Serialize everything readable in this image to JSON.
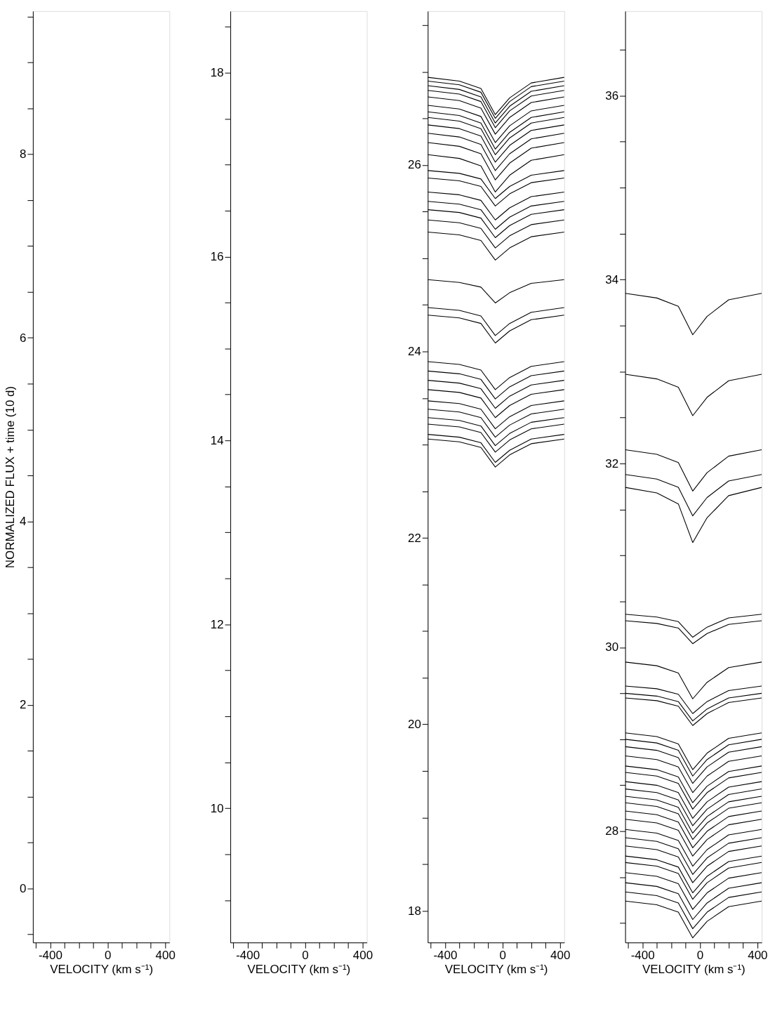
{
  "chart_data": [
    {
      "type": "line",
      "xlabel": "VELOCITY (km s⁻¹)",
      "ylabel": "NORMALIZED FLUX + time (10 d)",
      "xlim": [
        -520,
        430
      ],
      "ylim": [
        -0.59,
        9.56
      ],
      "xticks": [
        {
          "value": -500,
          "label": null
        },
        -400,
        {
          "value": -300,
          "label": null
        },
        {
          "value": -200,
          "label": null
        },
        {
          "value": -100,
          "label": null
        },
        0,
        {
          "value": 100,
          "label": null
        },
        {
          "value": 200,
          "label": null
        },
        {
          "value": 300,
          "label": null
        },
        400
      ],
      "yticks": [
        {
          "value": -0.5,
          "label": null
        },
        0,
        {
          "value": 0.5,
          "label": null
        },
        {
          "value": 1,
          "label": null
        },
        {
          "value": 1.5,
          "label": null
        },
        2,
        {
          "value": 2.5,
          "label": null
        },
        {
          "value": 3,
          "label": null
        },
        {
          "value": 3.5,
          "label": null
        },
        4,
        {
          "value": 4.5,
          "label": null
        },
        {
          "value": 5,
          "label": null
        },
        {
          "value": 5.5,
          "label": null
        },
        6,
        {
          "value": 6.5,
          "label": null
        },
        {
          "value": 7,
          "label": null
        },
        {
          "value": 7.5,
          "label": null
        },
        8,
        {
          "value": 8.5,
          "label": null
        },
        {
          "value": 9,
          "label": null
        },
        {
          "value": 9.5,
          "label": null
        }
      ]
    },
    {
      "type": "line",
      "xlabel": "VELOCITY (km s⁻¹)",
      "xlim": [
        -520,
        430
      ],
      "ylim": [
        8.54,
        18.67
      ],
      "xticks": [
        {
          "value": -500,
          "label": null
        },
        -400,
        {
          "value": -300,
          "label": null
        },
        {
          "value": -200,
          "label": null
        },
        {
          "value": -100,
          "label": null
        },
        0,
        {
          "value": 100,
          "label": null
        },
        {
          "value": 200,
          "label": null
        },
        {
          "value": 300,
          "label": null
        },
        400
      ],
      "yticks": [
        {
          "value": 9,
          "label": null
        },
        {
          "value": 9.5,
          "label": null
        },
        10,
        {
          "value": 10.5,
          "label": null
        },
        {
          "value": 11,
          "label": null
        },
        {
          "value": 11.5,
          "label": null
        },
        12,
        {
          "value": 12.5,
          "label": null
        },
        {
          "value": 13,
          "label": null
        },
        {
          "value": 13.5,
          "label": null
        },
        14,
        {
          "value": 14.5,
          "label": null
        },
        {
          "value": 15,
          "label": null
        },
        {
          "value": 15.5,
          "label": null
        },
        16,
        {
          "value": 16.5,
          "label": null
        },
        {
          "value": 17,
          "label": null
        },
        {
          "value": 17.5,
          "label": null
        },
        18,
        {
          "value": 18.5,
          "label": null
        }
      ]
    },
    {
      "type": "line",
      "xlabel": "VELOCITY (km s⁻¹)",
      "xlim": [
        -520,
        430
      ],
      "ylim": [
        17.66,
        27.65
      ],
      "xticks": [
        {
          "value": -500,
          "label": null
        },
        -400,
        {
          "value": -300,
          "label": null
        },
        {
          "value": -200,
          "label": null
        },
        {
          "value": -100,
          "label": null
        },
        0,
        {
          "value": 100,
          "label": null
        },
        {
          "value": 200,
          "label": null
        },
        {
          "value": 300,
          "label": null
        },
        400
      ],
      "yticks": [
        18,
        {
          "value": 18.5,
          "label": null
        },
        {
          "value": 19,
          "label": null
        },
        {
          "value": 19.5,
          "label": null
        },
        20,
        {
          "value": 20.5,
          "label": null
        },
        {
          "value": 21,
          "label": null
        },
        {
          "value": 21.5,
          "label": null
        },
        22,
        {
          "value": 22.5,
          "label": null
        },
        {
          "value": 23,
          "label": null
        },
        {
          "value": 23.5,
          "label": null
        },
        24,
        {
          "value": 24.5,
          "label": null
        },
        {
          "value": 25,
          "label": null
        },
        {
          "value": 25.5,
          "label": null
        },
        26,
        {
          "value": 26.5,
          "label": null
        },
        {
          "value": 27,
          "label": null
        },
        {
          "value": 27.5,
          "label": null
        }
      ],
      "x": [
        -520,
        -300,
        -150,
        -50,
        50,
        200,
        430
      ],
      "series": [
        {
          "color": "#000000",
          "values": [
            26.94,
            26.9,
            26.82,
            26.54,
            26.72,
            26.88,
            26.94
          ]
        },
        {
          "color": "#000000",
          "values": [
            26.9,
            26.86,
            26.78,
            26.5,
            26.68,
            26.84,
            26.9
          ]
        },
        {
          "color": "#000000",
          "values": [
            26.85,
            26.81,
            26.73,
            26.45,
            26.63,
            26.79,
            26.85
          ]
        },
        {
          "color": "#000000",
          "values": [
            26.8,
            26.76,
            26.68,
            26.4,
            26.58,
            26.74,
            26.8
          ]
        },
        {
          "color": "#000000",
          "values": [
            26.73,
            26.69,
            26.61,
            26.33,
            26.51,
            26.67,
            26.73
          ]
        },
        {
          "color": "#000000",
          "values": [
            26.64,
            26.6,
            26.52,
            26.24,
            26.42,
            26.58,
            26.64
          ]
        },
        {
          "color": "#000000",
          "values": [
            26.57,
            26.53,
            26.45,
            26.17,
            26.35,
            26.51,
            26.57
          ]
        },
        {
          "color": "#000000",
          "values": [
            26.51,
            26.47,
            26.39,
            26.11,
            26.29,
            26.45,
            26.51
          ]
        },
        {
          "color": "#000000",
          "values": [
            26.43,
            26.39,
            26.31,
            26.03,
            26.21,
            26.37,
            26.43
          ]
        },
        {
          "color": "#000000",
          "values": [
            26.34,
            26.3,
            26.22,
            25.94,
            26.12,
            26.28,
            26.34
          ]
        },
        {
          "color": "#000000",
          "values": [
            26.24,
            26.2,
            26.12,
            25.84,
            26.02,
            26.18,
            26.24
          ]
        },
        {
          "color": "#000000",
          "values": [
            26.11,
            26.07,
            25.99,
            25.71,
            25.89,
            26.05,
            26.11
          ]
        },
        {
          "color": "#000000",
          "values": [
            25.94,
            25.91,
            25.85,
            25.64,
            25.77,
            25.89,
            25.94
          ]
        },
        {
          "color": "#000000",
          "values": [
            25.86,
            25.83,
            25.77,
            25.56,
            25.69,
            25.81,
            25.86
          ]
        },
        {
          "color": "#000000",
          "values": [
            25.71,
            25.68,
            25.62,
            25.41,
            25.54,
            25.66,
            25.71
          ]
        },
        {
          "color": "#000000",
          "values": [
            25.61,
            25.58,
            25.52,
            25.31,
            25.44,
            25.56,
            25.61
          ]
        },
        {
          "color": "#000000",
          "values": [
            25.52,
            25.49,
            25.43,
            25.22,
            25.35,
            25.47,
            25.52
          ]
        },
        {
          "color": "#000000",
          "values": [
            25.41,
            25.38,
            25.32,
            25.11,
            25.24,
            25.36,
            25.41
          ]
        },
        {
          "color": "#000000",
          "values": [
            25.28,
            25.25,
            25.19,
            24.98,
            25.11,
            25.23,
            25.28
          ]
        },
        {
          "color": "#000000",
          "values": [
            24.77,
            24.74,
            24.69,
            24.52,
            24.63,
            24.73,
            24.77
          ]
        },
        {
          "color": "#000000",
          "values": [
            24.47,
            24.44,
            24.38,
            24.17,
            24.3,
            24.42,
            24.47
          ]
        },
        {
          "color": "#000000",
          "values": [
            24.39,
            24.36,
            24.3,
            24.09,
            24.22,
            24.34,
            24.39
          ]
        },
        {
          "color": "#000000",
          "values": [
            23.89,
            23.86,
            23.8,
            23.59,
            23.72,
            23.84,
            23.89
          ]
        },
        {
          "color": "#000000",
          "values": [
            23.79,
            23.76,
            23.7,
            23.49,
            23.62,
            23.74,
            23.79
          ]
        },
        {
          "color": "#000000",
          "values": [
            23.69,
            23.66,
            23.6,
            23.39,
            23.52,
            23.64,
            23.69
          ]
        },
        {
          "color": "#000000",
          "values": [
            23.59,
            23.56,
            23.5,
            23.29,
            23.42,
            23.54,
            23.59
          ]
        },
        {
          "color": "#000000",
          "values": [
            23.47,
            23.44,
            23.38,
            23.17,
            23.3,
            23.42,
            23.47
          ]
        },
        {
          "color": "#000000",
          "values": [
            23.38,
            23.35,
            23.29,
            23.08,
            23.21,
            23.33,
            23.38
          ]
        },
        {
          "color": "#000000",
          "values": [
            23.29,
            23.26,
            23.2,
            22.99,
            23.12,
            23.24,
            23.29
          ]
        },
        {
          "color": "#000000",
          "values": [
            23.22,
            23.19,
            23.13,
            22.92,
            23.05,
            23.17,
            23.22
          ]
        },
        {
          "color": "#000000",
          "values": [
            23.11,
            23.08,
            23.02,
            22.81,
            22.94,
            23.06,
            23.11
          ]
        },
        {
          "color": "#000000",
          "values": [
            23.06,
            23.03,
            22.97,
            22.76,
            22.89,
            23.01,
            23.06
          ]
        }
      ]
    },
    {
      "type": "line",
      "xlabel": "VELOCITY (km s⁻¹)",
      "xlim": [
        -520,
        430
      ],
      "ylim": [
        26.79,
        36.92
      ],
      "xticks": [
        {
          "value": -500,
          "label": null
        },
        -400,
        {
          "value": -300,
          "label": null
        },
        {
          "value": -200,
          "label": null
        },
        {
          "value": -100,
          "label": null
        },
        0,
        {
          "value": 100,
          "label": null
        },
        {
          "value": 200,
          "label": null
        },
        {
          "value": 300,
          "label": null
        },
        400
      ],
      "yticks": [
        {
          "value": 27,
          "label": null
        },
        {
          "value": 27.5,
          "label": null
        },
        28,
        {
          "value": 28.5,
          "label": null
        },
        {
          "value": 29,
          "label": null
        },
        {
          "value": 29.5,
          "label": null
        },
        30,
        {
          "value": 30.5,
          "label": null
        },
        {
          "value": 31,
          "label": null
        },
        {
          "value": 31.5,
          "label": null
        },
        32,
        {
          "value": 32.5,
          "label": null
        },
        {
          "value": 33,
          "label": null
        },
        {
          "value": 33.5,
          "label": null
        },
        34,
        {
          "value": 34.5,
          "label": null
        },
        {
          "value": 35,
          "label": null
        },
        {
          "value": 35.5,
          "label": null
        },
        36,
        {
          "value": 36.5,
          "label": null
        }
      ],
      "x": [
        -520,
        -300,
        -150,
        -50,
        50,
        200,
        430
      ],
      "series": [
        {
          "color": "#000000",
          "values": [
            33.85,
            33.8,
            33.71,
            33.4,
            33.6,
            33.78,
            33.85
          ]
        },
        {
          "color": "#000000",
          "values": [
            32.97,
            32.92,
            32.83,
            32.52,
            32.72,
            32.9,
            32.97
          ]
        },
        {
          "color": "#000000",
          "values": [
            32.15,
            32.1,
            32.01,
            31.7,
            31.9,
            32.08,
            32.15
          ]
        },
        {
          "color": "#000000",
          "values": [
            31.88,
            31.83,
            31.74,
            31.43,
            31.63,
            31.81,
            31.88
          ]
        },
        {
          "color": "#000000",
          "values": [
            31.74,
            31.68,
            31.56,
            31.14,
            31.41,
            31.65,
            31.74
          ]
        },
        {
          "color": "#000000",
          "values": [
            30.36,
            30.33,
            30.28,
            30.11,
            30.22,
            30.32,
            30.36
          ]
        },
        {
          "color": "#000000",
          "values": [
            30.29,
            30.26,
            30.21,
            30.04,
            30.15,
            30.25,
            30.29
          ]
        },
        {
          "color": "#000000",
          "values": [
            29.84,
            29.8,
            29.72,
            29.44,
            29.62,
            29.78,
            29.84
          ]
        },
        {
          "color": "#000000",
          "values": [
            29.58,
            29.55,
            29.49,
            29.28,
            29.41,
            29.53,
            29.58
          ]
        },
        {
          "color": "#000000",
          "values": [
            29.5,
            29.47,
            29.41,
            29.2,
            29.33,
            29.45,
            29.5
          ]
        },
        {
          "color": "#000000",
          "values": [
            29.45,
            29.42,
            29.36,
            29.15,
            29.28,
            29.4,
            29.45
          ]
        },
        {
          "color": "#000000",
          "values": [
            29.07,
            29.03,
            28.95,
            28.67,
            28.85,
            29.01,
            29.07
          ]
        },
        {
          "color": "#000000",
          "values": [
            29.0,
            28.96,
            28.88,
            28.6,
            28.78,
            28.94,
            29.0
          ]
        },
        {
          "color": "#000000",
          "values": [
            28.92,
            28.88,
            28.8,
            28.52,
            28.7,
            28.86,
            28.92
          ]
        },
        {
          "color": "#000000",
          "values": [
            28.82,
            28.78,
            28.7,
            28.42,
            28.6,
            28.76,
            28.82
          ]
        },
        {
          "color": "#000000",
          "values": [
            28.71,
            28.67,
            28.59,
            28.31,
            28.49,
            28.65,
            28.71
          ]
        },
        {
          "color": "#000000",
          "values": [
            28.64,
            28.6,
            28.52,
            28.24,
            28.42,
            28.58,
            28.64
          ]
        },
        {
          "color": "#000000",
          "values": [
            28.54,
            28.5,
            28.42,
            28.14,
            28.32,
            28.48,
            28.54
          ]
        },
        {
          "color": "#000000",
          "values": [
            28.46,
            28.42,
            28.34,
            28.06,
            28.24,
            28.4,
            28.46
          ]
        },
        {
          "color": "#000000",
          "values": [
            28.38,
            28.34,
            28.26,
            27.98,
            28.16,
            28.32,
            28.38
          ]
        },
        {
          "color": "#000000",
          "values": [
            28.31,
            28.27,
            28.19,
            27.91,
            28.09,
            28.25,
            28.31
          ]
        },
        {
          "color": "#000000",
          "values": [
            28.22,
            28.18,
            28.1,
            27.82,
            28.0,
            28.16,
            28.22
          ]
        },
        {
          "color": "#000000",
          "values": [
            28.13,
            28.09,
            28.01,
            27.73,
            27.91,
            28.07,
            28.13
          ]
        },
        {
          "color": "#000000",
          "values": [
            28.02,
            27.98,
            27.9,
            27.62,
            27.8,
            27.96,
            28.02
          ]
        },
        {
          "color": "#000000",
          "values": [
            27.93,
            27.89,
            27.81,
            27.53,
            27.71,
            27.87,
            27.93
          ]
        },
        {
          "color": "#000000",
          "values": [
            27.84,
            27.8,
            27.72,
            27.44,
            27.62,
            27.78,
            27.84
          ]
        },
        {
          "color": "#000000",
          "values": [
            27.73,
            27.69,
            27.61,
            27.33,
            27.51,
            27.67,
            27.73
          ]
        },
        {
          "color": "#000000",
          "values": [
            27.66,
            27.62,
            27.54,
            27.26,
            27.44,
            27.6,
            27.66
          ]
        },
        {
          "color": "#000000",
          "values": [
            27.55,
            27.51,
            27.43,
            27.15,
            27.33,
            27.49,
            27.55
          ]
        },
        {
          "color": "#000000",
          "values": [
            27.44,
            27.4,
            27.32,
            27.04,
            27.22,
            27.38,
            27.44
          ]
        },
        {
          "color": "#000000",
          "values": [
            27.34,
            27.3,
            27.22,
            26.94,
            27.12,
            27.28,
            27.34
          ]
        },
        {
          "color": "#000000",
          "values": [
            27.24,
            27.2,
            27.12,
            26.84,
            27.02,
            27.18,
            27.24
          ]
        }
      ]
    }
  ]
}
